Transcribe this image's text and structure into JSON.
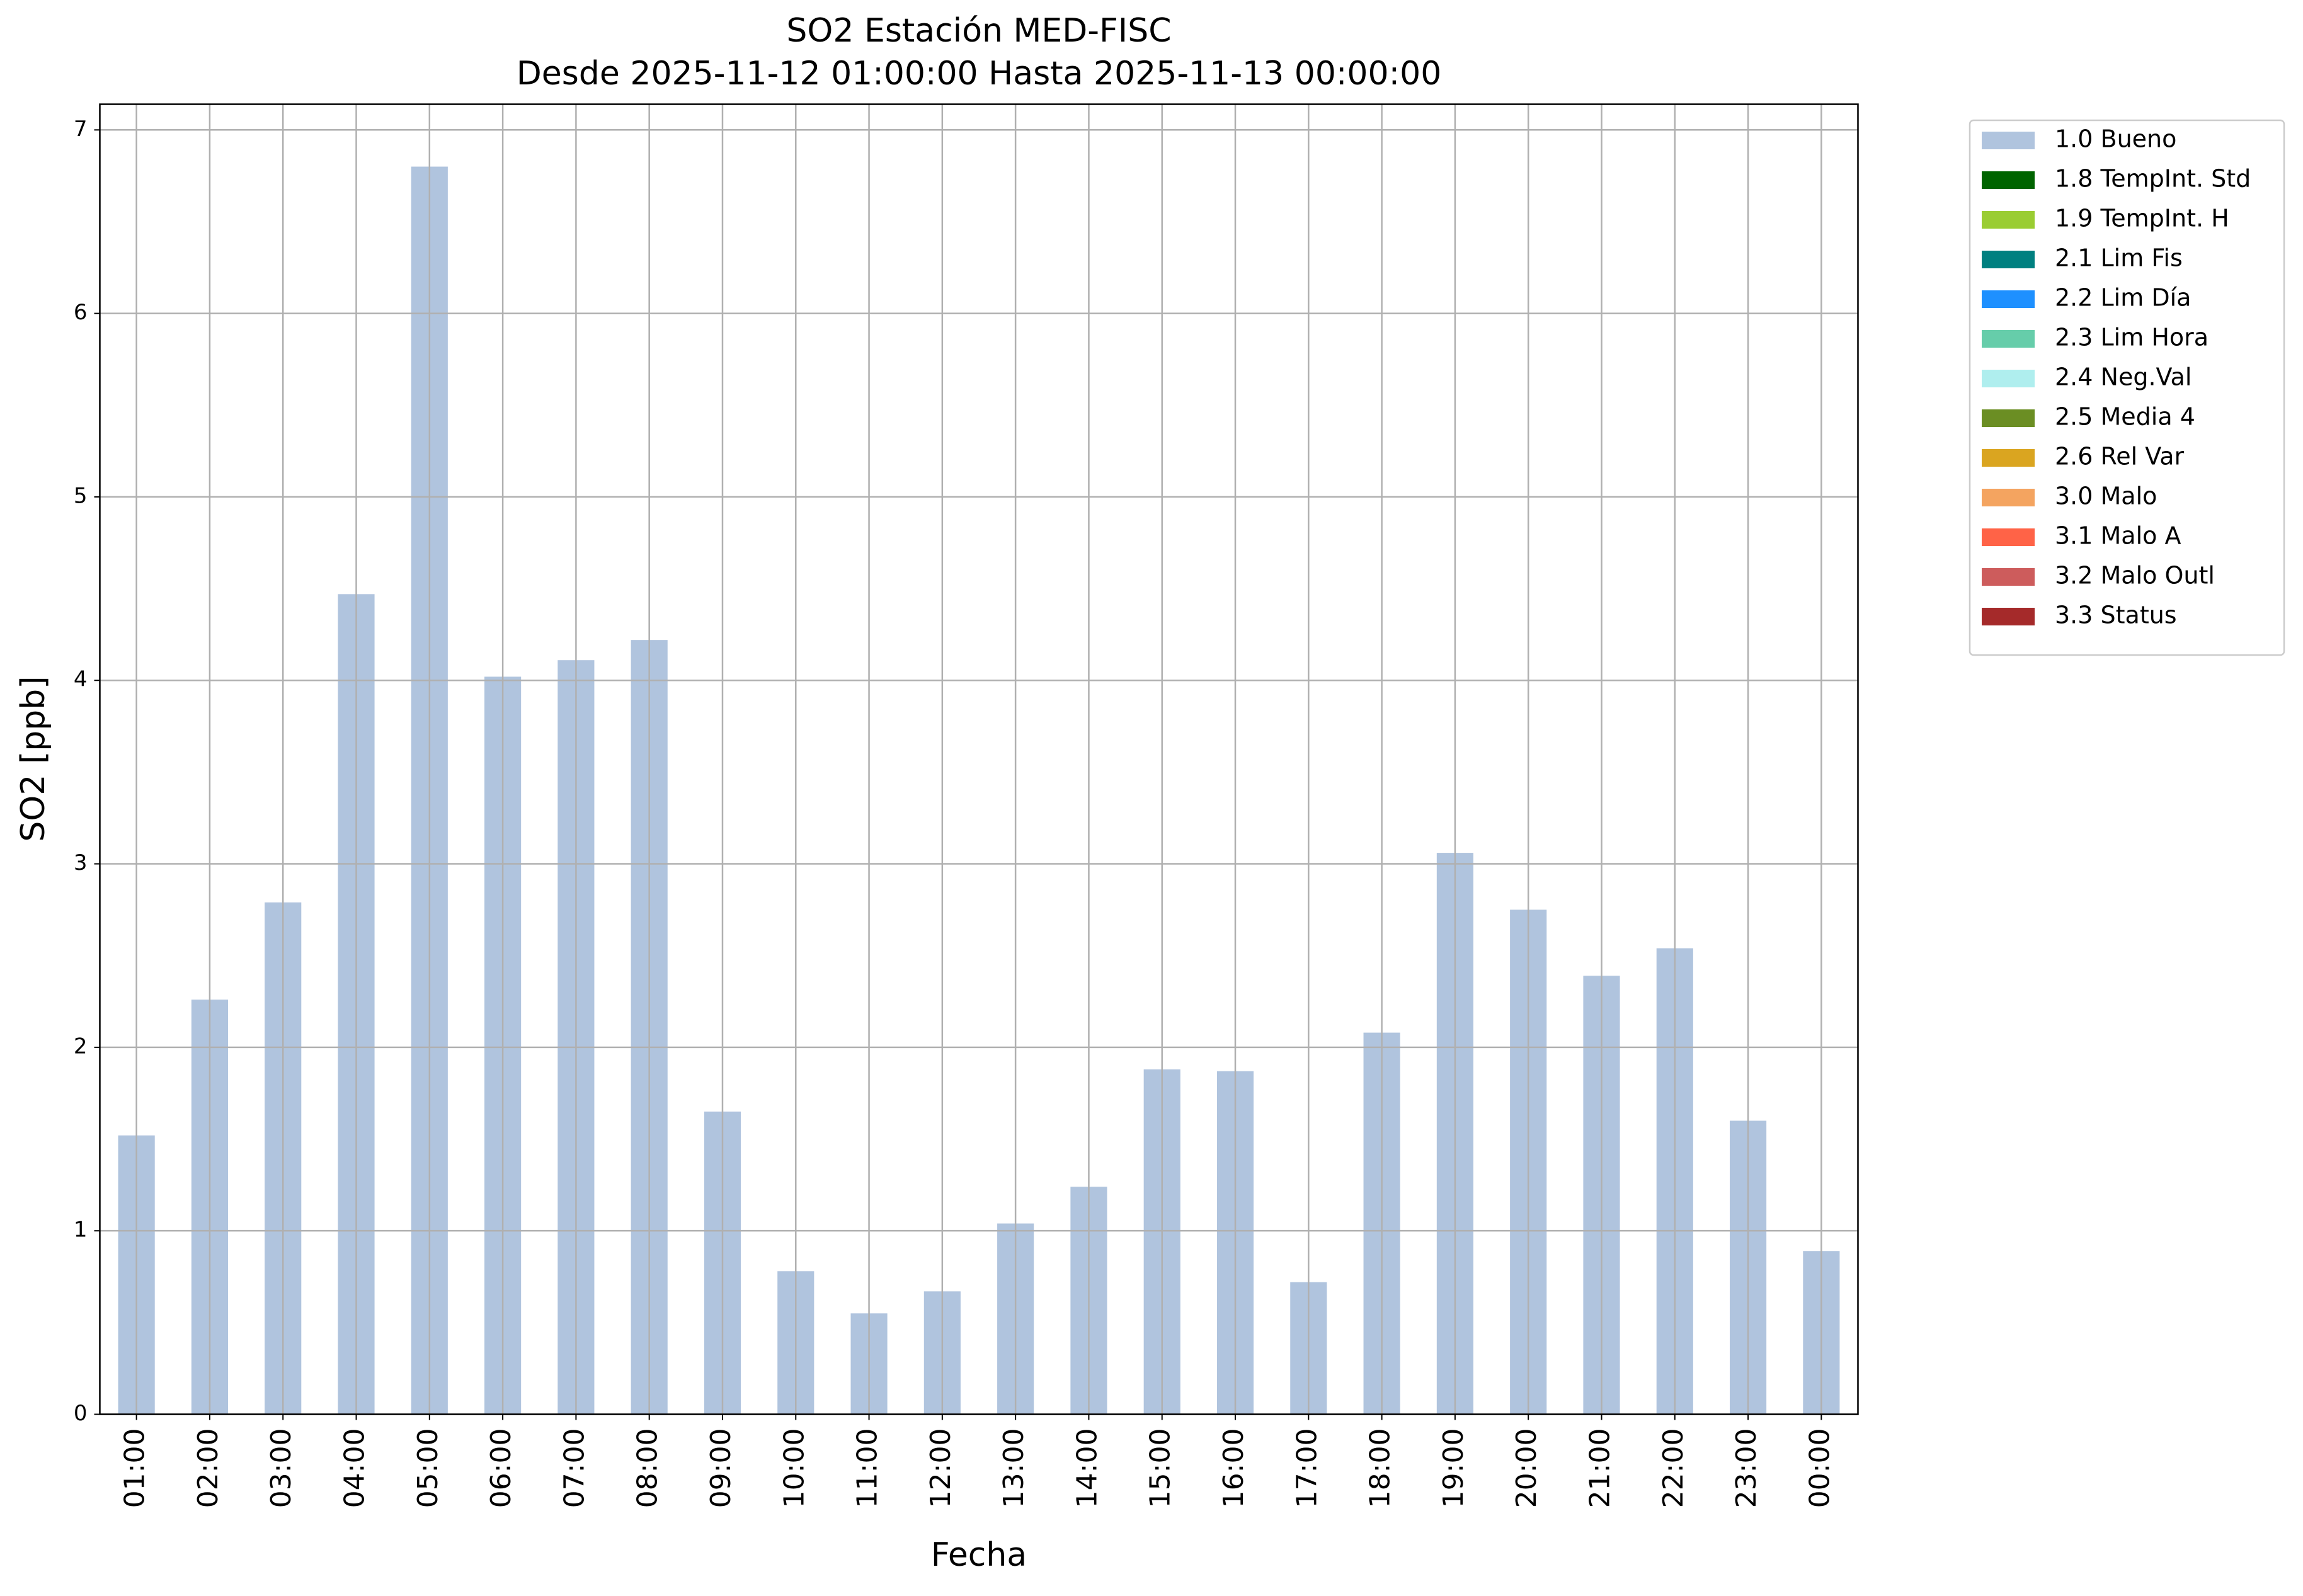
{
  "chart_data": {
    "type": "bar",
    "title": "SO2 Estación MED-FISC",
    "subtitle": "Desde 2025-11-12 01:00:00 Hasta 2025-11-13 00:00:00",
    "x_label": "Fecha",
    "y_label": "SO2 [ppb]",
    "categories": [
      "01:00",
      "02:00",
      "03:00",
      "04:00",
      "05:00",
      "06:00",
      "07:00",
      "08:00",
      "09:00",
      "10:00",
      "11:00",
      "12:00",
      "13:00",
      "14:00",
      "15:00",
      "16:00",
      "17:00",
      "18:00",
      "19:00",
      "20:00",
      "21:00",
      "22:00",
      "23:00",
      "00:00"
    ],
    "series": [
      {
        "name": "1.0 Bueno",
        "color": "#b0c4de",
        "values": [
          1.52,
          2.26,
          2.79,
          4.47,
          6.8,
          4.02,
          4.11,
          4.22,
          1.65,
          0.78,
          0.55,
          0.67,
          1.04,
          1.24,
          1.88,
          1.87,
          0.72,
          2.08,
          3.06,
          2.75,
          2.39,
          2.54,
          1.6,
          0.89
        ]
      }
    ],
    "other_legend_entries": [
      {
        "name": "1.8 TempInt. Std",
        "color": "#006400"
      },
      {
        "name": "1.9 TempInt. H",
        "color": "#9acd32"
      },
      {
        "name": "2.1 Lim Fis",
        "color": "#008080"
      },
      {
        "name": "2.2 Lim Día",
        "color": "#1e90ff"
      },
      {
        "name": "2.3 Lim Hora",
        "color": "#66cdaa"
      },
      {
        "name": "2.4 Neg.Val",
        "color": "#afeeee"
      },
      {
        "name": "2.5 Media 4",
        "color": "#6b8e23"
      },
      {
        "name": "2.6 Rel Var",
        "color": "#daa520"
      },
      {
        "name": "3.0 Malo",
        "color": "#f4a460"
      },
      {
        "name": "3.1 Malo A",
        "color": "#ff6347"
      },
      {
        "name": "3.2 Malo Outl",
        "color": "#cd5c5c"
      },
      {
        "name": "3.3 Status",
        "color": "#a52a2a"
      }
    ],
    "ylim": [
      0,
      7.14
    ],
    "yticks": [
      0,
      1,
      2,
      3,
      4,
      5,
      6,
      7
    ],
    "grid": true,
    "legend_position": "outside-right-top"
  }
}
